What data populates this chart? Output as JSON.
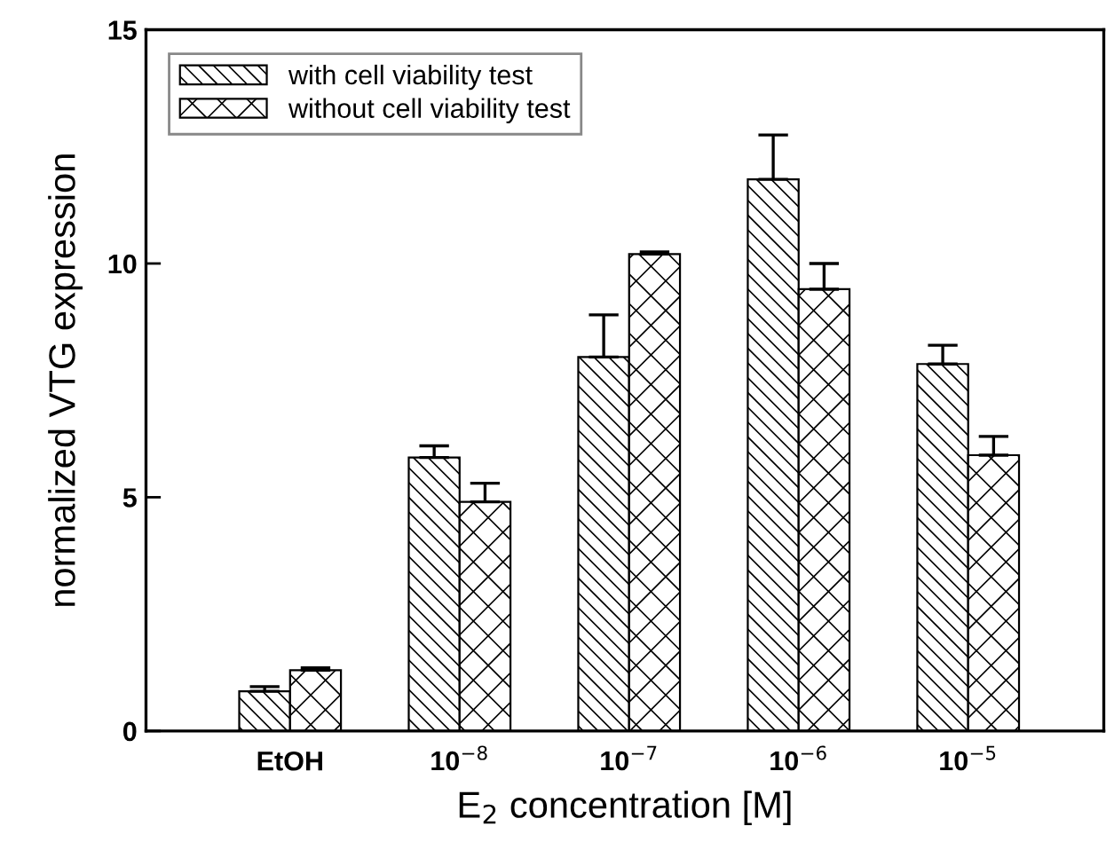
{
  "chart_data": {
    "type": "bar",
    "xlabel": "E$_{2}$ concentration [M]",
    "ylabel": "normalized VTG expression",
    "categories": [
      "EtOH",
      "10$^{−8}$",
      "10$^{−7}$",
      "10$^{−6}$",
      "10$^{−5}$"
    ],
    "series": [
      {
        "name": "with cell viability test",
        "color": "#000000",
        "values": [
          0.85,
          5.85,
          8.0,
          11.8,
          7.85
        ],
        "errors": [
          [
            0.85,
            0.95
          ],
          [
            5.85,
            6.1
          ],
          [
            8.0,
            8.9
          ],
          [
            11.8,
            12.75
          ],
          [
            7.85,
            8.25
          ]
        ]
      },
      {
        "name": "without cell viability test",
        "color": "#000000",
        "values": [
          1.3,
          4.9,
          10.2,
          9.45,
          5.9
        ],
        "errors": [
          [
            1.3,
            1.35
          ],
          [
            4.9,
            5.3
          ],
          [
            10.2,
            10.25
          ],
          [
            9.45,
            10.0
          ],
          [
            5.9,
            6.3
          ]
        ]
      }
    ],
    "ylim": [
      0,
      15
    ],
    "yticks": [
      0,
      5,
      10,
      15
    ],
    "grid": false,
    "legend": "top left"
  }
}
